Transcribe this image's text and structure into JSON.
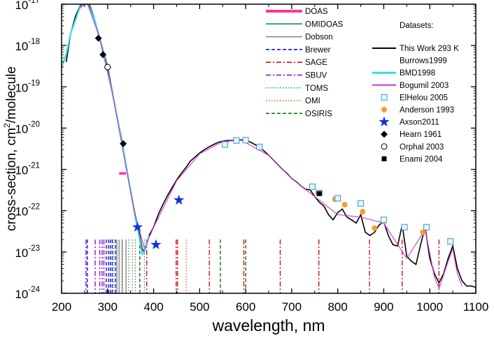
{
  "chart_data": {
    "type": "line",
    "xlabel": "wavelength, nm",
    "ylabel_main": "cross-section, cm",
    "ylabel_sup": "2",
    "ylabel_tail": "/molecule",
    "xlim": [
      200,
      1100
    ],
    "ylim": [
      1e-24,
      1e-17
    ],
    "yscale": "log",
    "grid": false,
    "x_ticks": [
      "200",
      "300",
      "400",
      "500",
      "600",
      "700",
      "800",
      "900",
      "1000",
      "1100"
    ],
    "y_ticks": [
      {
        "base": "10",
        "exp": "-17"
      },
      {
        "base": "10",
        "exp": "-18"
      },
      {
        "base": "10",
        "exp": "-19"
      },
      {
        "base": "10",
        "exp": "-20"
      },
      {
        "base": "10",
        "exp": "-21"
      },
      {
        "base": "10",
        "exp": "-22"
      },
      {
        "base": "10",
        "exp": "-23"
      },
      {
        "base": "10",
        "exp": "-24"
      }
    ],
    "instrument_legend": [
      {
        "label": "DOAS",
        "color": "#ff3399",
        "style": "thick"
      },
      {
        "label": "OMIDOAS",
        "color": "#008080",
        "style": "solid"
      },
      {
        "label": "Dobson",
        "color": "#808080",
        "style": "solid"
      },
      {
        "label": "Brewer",
        "color": "#0000cc",
        "style": "dash"
      },
      {
        "label": "SAGE",
        "color": "#cc0000",
        "style": "dashdot"
      },
      {
        "label": "SBUV",
        "color": "#8800cc",
        "style": "dashdot"
      },
      {
        "label": "TOMS",
        "color": "#009999",
        "style": "dot"
      },
      {
        "label": "OMI",
        "color": "#dd6600",
        "style": "dot"
      },
      {
        "label": "OSIRIS",
        "color": "#006600",
        "style": "dash"
      }
    ],
    "datasets_title": "Datasets:",
    "datasets_legend": [
      {
        "label": "This Work 293 K",
        "kind": "line",
        "color": "#000000"
      },
      {
        "label": "Burrows1999",
        "kind": "none",
        "color": "#000000"
      },
      {
        "label": "BMD1998",
        "kind": "line",
        "color": "#33dddd"
      },
      {
        "label": "Bogumil 2003",
        "kind": "line",
        "color": "#cc33cc"
      },
      {
        "label": "ElHelou 2005",
        "kind": "square",
        "color": "#3399cc"
      },
      {
        "label": "Anderson 1993",
        "kind": "circle",
        "color": "#ff9933"
      },
      {
        "label": "Axson2011",
        "kind": "star",
        "color": "#1133dd"
      },
      {
        "label": "Hearn 1961",
        "kind": "diamond",
        "color": "#000000"
      },
      {
        "label": "Orphal 2003",
        "kind": "opencircle",
        "color": "#000000"
      },
      {
        "label": "Enami 2004",
        "kind": "filledsquare",
        "color": "#000000"
      }
    ],
    "series": [
      {
        "name": "This Work 293 K",
        "color": "#000000",
        "points": [
          [
            210,
            4e-19
          ],
          [
            220,
            2e-18
          ],
          [
            230,
            5e-18
          ],
          [
            240,
            9e-18
          ],
          [
            250,
            1.15e-17
          ],
          [
            255,
            1.2e-17
          ],
          [
            260,
            1e-17
          ],
          [
            270,
            5e-18
          ],
          [
            280,
            2e-18
          ],
          [
            290,
            8e-19
          ],
          [
            300,
            3e-19
          ],
          [
            310,
            8e-20
          ],
          [
            320,
            2e-20
          ],
          [
            330,
            6e-21
          ],
          [
            340,
            1.2e-21
          ],
          [
            350,
            3e-22
          ],
          [
            360,
            8e-23
          ],
          [
            370,
            2.5e-23
          ],
          [
            375,
            1.2e-23
          ],
          [
            380,
            1e-23
          ],
          [
            385,
            1.5e-23
          ],
          [
            390,
            2.5e-23
          ],
          [
            400,
            4e-23
          ],
          [
            410,
            8e-23
          ],
          [
            420,
            1.4e-22
          ],
          [
            430,
            2.3e-22
          ],
          [
            440,
            3.6e-22
          ],
          [
            450,
            5.5e-22
          ],
          [
            460,
            8e-22
          ],
          [
            470,
            1.1e-21
          ],
          [
            480,
            1.6e-21
          ],
          [
            490,
            2e-21
          ],
          [
            500,
            2.5e-21
          ],
          [
            510,
            3e-21
          ],
          [
            520,
            3.5e-21
          ],
          [
            530,
            4e-21
          ],
          [
            540,
            4.5e-21
          ],
          [
            550,
            4.8e-21
          ],
          [
            560,
            5e-21
          ],
          [
            570,
            5e-21
          ],
          [
            580,
            5.1e-21
          ],
          [
            590,
            5.2e-21
          ],
          [
            600,
            5e-21
          ],
          [
            610,
            4.6e-21
          ],
          [
            620,
            4e-21
          ],
          [
            630,
            3.4e-21
          ],
          [
            640,
            2.8e-21
          ],
          [
            650,
            2.2e-21
          ],
          [
            660,
            1.7e-21
          ],
          [
            670,
            1.3e-21
          ],
          [
            680,
            1e-21
          ],
          [
            690,
            8e-22
          ],
          [
            700,
            6e-22
          ],
          [
            710,
            5e-22
          ],
          [
            720,
            4e-22
          ],
          [
            730,
            3.3e-22
          ],
          [
            740,
            3.2e-22
          ],
          [
            750,
            2.2e-22
          ],
          [
            760,
            1.6e-22
          ],
          [
            770,
            1.3e-22
          ],
          [
            780,
            8e-23
          ],
          [
            790,
            6e-23
          ],
          [
            800,
            9e-23
          ],
          [
            810,
            1.1e-22
          ],
          [
            820,
            7e-23
          ],
          [
            830,
            6e-23
          ],
          [
            840,
            5e-23
          ],
          [
            850,
            8e-23
          ],
          [
            860,
            3e-23
          ],
          [
            870,
            2.5e-23
          ],
          [
            880,
            3e-23
          ],
          [
            890,
            4.5e-23
          ],
          [
            900,
            5.5e-23
          ],
          [
            910,
            2.5e-23
          ],
          [
            920,
            1.5e-23
          ],
          [
            930,
            1.4e-23
          ],
          [
            940,
            4.5e-23
          ],
          [
            950,
            8e-24
          ],
          [
            960,
            6e-24
          ],
          [
            970,
            5e-24
          ],
          [
            980,
            1.5e-23
          ],
          [
            990,
            4e-23
          ],
          [
            1000,
            7e-24
          ],
          [
            1010,
            3e-24
          ],
          [
            1020,
            1.8e-24
          ],
          [
            1030,
            3e-24
          ],
          [
            1040,
            7e-24
          ],
          [
            1050,
            1.4e-23
          ],
          [
            1060,
            4e-24
          ],
          [
            1070,
            2e-24
          ],
          [
            1080,
            1.5e-24
          ],
          [
            1090,
            1.5e-24
          ],
          [
            1100,
            1.4e-24
          ]
        ]
      },
      {
        "name": "BMD1998",
        "color": "#33dddd",
        "points": [
          [
            200,
            3e-19
          ],
          [
            210,
            6e-19
          ],
          [
            220,
            2e-18
          ],
          [
            240,
            8.5e-18
          ],
          [
            255,
            1.15e-17
          ],
          [
            270,
            4.8e-18
          ],
          [
            290,
            7.5e-19
          ],
          [
            310,
            7.5e-20
          ],
          [
            330,
            5.5e-21
          ],
          [
            350,
            3e-22
          ],
          [
            360,
            7e-23
          ],
          [
            370,
            2e-23
          ],
          [
            375,
            9e-24
          ],
          [
            380,
            1e-23
          ],
          [
            390,
            2.5e-23
          ]
        ]
      },
      {
        "name": "Bogumil 2003",
        "color": "#cc33cc",
        "points": [
          [
            240,
            8e-18
          ],
          [
            255,
            1.1e-17
          ],
          [
            280,
            1.9e-18
          ],
          [
            310,
            7.5e-20
          ],
          [
            340,
            1.1e-21
          ],
          [
            360,
            8e-23
          ],
          [
            380,
            1.2e-23
          ],
          [
            400,
            4e-23
          ],
          [
            450,
            5.3e-22
          ],
          [
            500,
            2.4e-21
          ],
          [
            550,
            4.7e-21
          ],
          [
            590,
            5.1e-21
          ],
          [
            650,
            2.2e-21
          ],
          [
            700,
            6e-22
          ],
          [
            750,
            2.2e-22
          ],
          [
            800,
            8e-23
          ],
          [
            850,
            7e-23
          ],
          [
            900,
            5e-23
          ],
          [
            950,
            7e-24
          ],
          [
            990,
            3.5e-23
          ],
          [
            1010,
            2.5e-24
          ],
          [
            1020,
            1.3e-24
          ],
          [
            1040,
            6e-24
          ],
          [
            1050,
            1.2e-23
          ],
          [
            1060,
            3e-24
          ],
          [
            1070,
            1.5e-24
          ]
        ]
      }
    ],
    "markers": [
      {
        "dataset": "Hearn 1961",
        "kind": "diamond",
        "points": [
          [
            253.7,
            1.15e-17
          ],
          [
            280,
            1.5e-18
          ],
          [
            290,
            6e-19
          ],
          [
            300,
            3e-19
          ],
          [
            334,
            4.2e-21
          ]
        ]
      },
      {
        "dataset": "Orphal 2003",
        "kind": "opencircle",
        "points": [
          [
            253,
            1.15e-17
          ],
          [
            300,
            3e-19
          ]
        ]
      },
      {
        "dataset": "Axson2011",
        "kind": "star",
        "points": [
          [
            365,
            4e-23
          ],
          [
            405,
            1.5e-23
          ],
          [
            455,
            1.8e-22
          ]
        ]
      },
      {
        "dataset": "Anderson 1993",
        "kind": "circle",
        "points": [
          [
            757,
            2.7e-22
          ],
          [
            794,
            1.9e-22
          ],
          [
            815,
            1.4e-22
          ],
          [
            854,
            9.5e-23
          ],
          [
            880,
            3.8e-23
          ],
          [
            900,
            5.5e-23
          ],
          [
            946,
            4e-23
          ],
          [
            985,
            3e-23
          ]
        ]
      },
      {
        "dataset": "ElHelou 2005",
        "kind": "square",
        "points": [
          [
            555,
            4e-21
          ],
          [
            580,
            5e-21
          ],
          [
            600,
            5.1e-21
          ],
          [
            630,
            3.5e-21
          ],
          [
            745,
            3.8e-22
          ],
          [
            760,
            2.7e-22
          ],
          [
            800,
            2e-22
          ],
          [
            850,
            1.5e-22
          ],
          [
            900,
            6e-23
          ],
          [
            945,
            4e-23
          ],
          [
            993,
            4e-23
          ],
          [
            1045,
            1.8e-23
          ]
        ]
      },
      {
        "dataset": "Enami 2004",
        "kind": "filledsquare",
        "points": [
          [
            760,
            2.6e-22
          ]
        ]
      }
    ],
    "doas_segments": [
      [
        325,
        340,
        8e-22
      ]
    ],
    "instrument_lines": [
      {
        "x": 253,
        "color": "#8800cc",
        "style": "dashdot"
      },
      {
        "x": 256,
        "color": "#0000cc",
        "style": "dash"
      },
      {
        "x": 273,
        "color": "#8800cc",
        "style": "dashdot"
      },
      {
        "x": 283,
        "color": "#8800cc",
        "style": "dashdot"
      },
      {
        "x": 288,
        "color": "#8800cc",
        "style": "dashdot"
      },
      {
        "x": 292,
        "color": "#8800cc",
        "style": "dashdot"
      },
      {
        "x": 297,
        "color": "#0000cc",
        "style": "dash"
      },
      {
        "x": 302,
        "color": "#0000cc",
        "style": "dash"
      },
      {
        "x": 306,
        "color": "#0000cc",
        "style": "dash"
      },
      {
        "x": 310,
        "color": "#0000cc",
        "style": "dash"
      },
      {
        "x": 313,
        "color": "#009999",
        "style": "dot"
      },
      {
        "x": 317,
        "color": "#0000cc",
        "style": "dash"
      },
      {
        "x": 320,
        "color": "#808080",
        "style": "solid"
      },
      {
        "x": 325,
        "color": "#808080",
        "style": "solid"
      },
      {
        "x": 331,
        "color": "#009999",
        "style": "dot"
      },
      {
        "x": 332,
        "color": "#808080",
        "style": "solid"
      },
      {
        "x": 340,
        "color": "#808080",
        "style": "solid"
      },
      {
        "x": 346,
        "color": "#009999",
        "style": "dot"
      },
      {
        "x": 354,
        "color": "#dd6600",
        "style": "dot"
      },
      {
        "x": 360,
        "color": "#009999",
        "style": "dot"
      },
      {
        "x": 370,
        "color": "#006600",
        "style": "dash"
      },
      {
        "x": 380,
        "color": "#009999",
        "style": "dot"
      },
      {
        "x": 385,
        "color": "#cc0000",
        "style": "dashdot"
      },
      {
        "x": 449,
        "color": "#cc0000",
        "style": "dashdot"
      },
      {
        "x": 452,
        "color": "#cc0000",
        "style": "dashdot"
      },
      {
        "x": 471,
        "color": "#dd6600",
        "style": "dot"
      },
      {
        "x": 521,
        "color": "#cc0000",
        "style": "dashdot"
      },
      {
        "x": 545,
        "color": "#006600",
        "style": "dash"
      },
      {
        "x": 596,
        "color": "#cc0000",
        "style": "dashdot"
      },
      {
        "x": 600,
        "color": "#006600",
        "style": "dash"
      },
      {
        "x": 675,
        "color": "#cc0000",
        "style": "dashdot"
      },
      {
        "x": 759,
        "color": "#cc0000",
        "style": "dashdot"
      },
      {
        "x": 869,
        "color": "#cc0000",
        "style": "dashdot"
      },
      {
        "x": 940,
        "color": "#cc0000",
        "style": "dashdot"
      },
      {
        "x": 1020,
        "color": "#cc0000",
        "style": "dashdot"
      }
    ]
  }
}
